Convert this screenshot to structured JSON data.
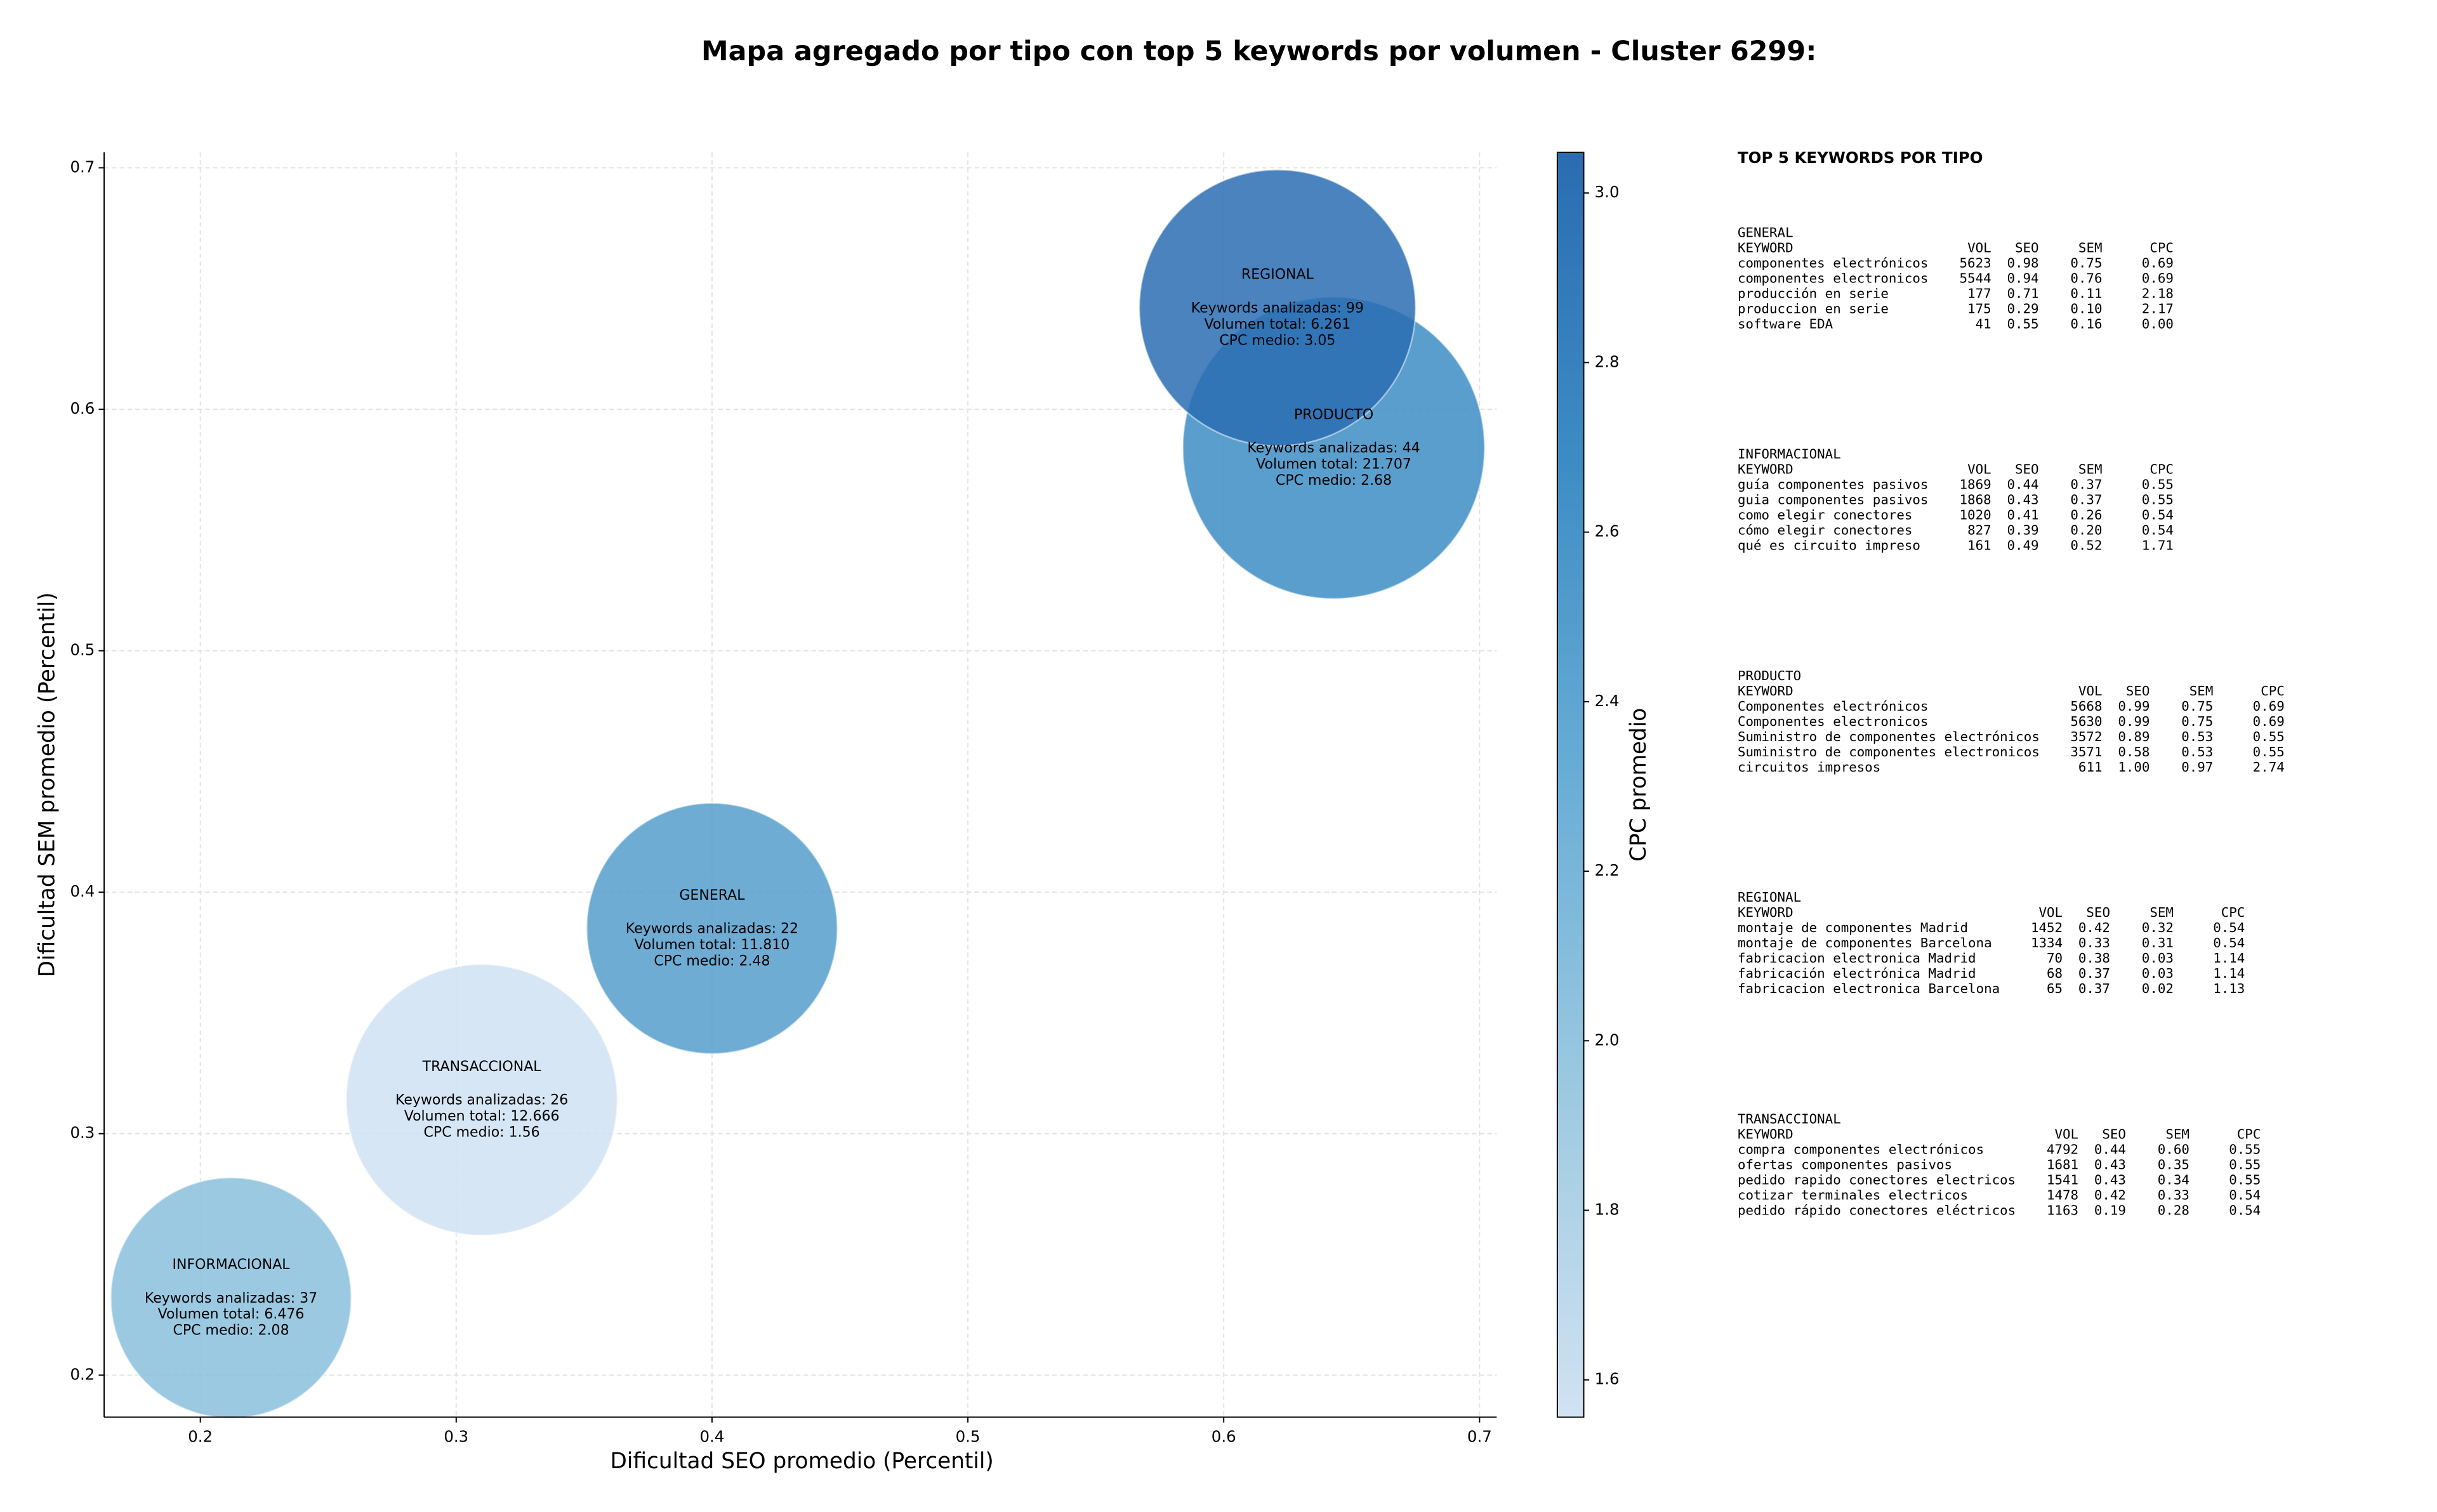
{
  "chart_data": {
    "type": "bubble",
    "title": "Mapa agregado por tipo con top 5 keywords por volumen - Cluster 6299:",
    "xlabel": "Dificultad SEO promedio (Percentil)",
    "ylabel": "Dificultad SEM promedio (Percentil)",
    "xlim": [
      0.1624,
      0.7067
    ],
    "ylim": [
      0.1826,
      0.7064
    ],
    "xticks": [
      0.2,
      0.3,
      0.4,
      0.5,
      0.6,
      0.7
    ],
    "yticks": [
      0.2,
      0.3,
      0.4,
      0.5,
      0.6,
      0.7
    ],
    "grid": true,
    "points": [
      {
        "name": "GENERAL",
        "x": 0.4,
        "y": 0.385,
        "size": 0.049,
        "cpc": 2.48,
        "annotation": [
          "Keywords analizadas: 22",
          "Volumen total: 11.810",
          "CPC medio: 2.48"
        ]
      },
      {
        "name": "INFORMACIONAL",
        "x": 0.212,
        "y": 0.232,
        "size": 0.047,
        "cpc": 2.08,
        "annotation": [
          "Keywords analizadas: 37",
          "Volumen total: 6.476",
          "CPC medio: 2.08"
        ]
      },
      {
        "name": "PRODUCTO",
        "x": 0.643,
        "y": 0.584,
        "size": 0.059,
        "cpc": 2.68,
        "annotation": [
          "Keywords analizadas: 44",
          "Volumen total: 21.707",
          "CPC medio: 2.68"
        ]
      },
      {
        "name": "REGIONAL",
        "x": 0.621,
        "y": 0.642,
        "size": 0.054,
        "cpc": 3.05,
        "annotation": [
          "Keywords analizadas: 99",
          "Volumen total: 6.261",
          "CPC medio: 3.05"
        ]
      },
      {
        "name": "TRANSACCIONAL",
        "x": 0.31,
        "y": 0.314,
        "size": 0.053,
        "cpc": 1.56,
        "annotation": [
          "Keywords analizadas: 26",
          "Volumen total: 12.666",
          "CPC medio: 1.56"
        ]
      }
    ],
    "colorbar": {
      "label": "CPC promedio",
      "lim": [
        1.556,
        3.048
      ],
      "ticks": [
        1.6,
        1.8,
        {
          "value": 2,
          "label": "2.0"
        },
        2.2,
        2.4,
        2.6,
        2.8,
        {
          "value": 3,
          "label": "3.0"
        }
      ],
      "colormap": [
        "#d1e2f3",
        "#9ecae1",
        "#6aaed6",
        "#3d8dc4",
        "#2a6db1"
      ]
    }
  },
  "side_panel": {
    "title": "TOP 5 KEYWORDS POR TIPO",
    "sections": [
      {
        "name": "GENERAL",
        "header": [
          "KEYWORD",
          "VOL",
          "SEO",
          "SEM",
          "CPC"
        ],
        "rows": [
          [
            "componentes electrónicos",
            "5623",
            "0.98",
            "0.75",
            "0.69"
          ],
          [
            "componentes electronicos",
            "5544",
            "0.94",
            "0.76",
            "0.69"
          ],
          [
            "producción en serie",
            "177",
            "0.71",
            "0.11",
            "2.18"
          ],
          [
            "produccion en serie",
            "175",
            "0.29",
            "0.10",
            "2.17"
          ],
          [
            "software EDA",
            "41",
            "0.55",
            "0.16",
            "0.00"
          ]
        ]
      },
      {
        "name": "INFORMACIONAL",
        "header": [
          "KEYWORD",
          "VOL",
          "SEO",
          "SEM",
          "CPC"
        ],
        "rows": [
          [
            "guía componentes pasivos",
            "1869",
            "0.44",
            "0.37",
            "0.55"
          ],
          [
            "guia componentes pasivos",
            "1868",
            "0.43",
            "0.37",
            "0.55"
          ],
          [
            "como elegir conectores",
            "1020",
            "0.41",
            "0.26",
            "0.54"
          ],
          [
            "cómo elegir conectores",
            "827",
            "0.39",
            "0.20",
            "0.54"
          ],
          [
            "qué es circuito impreso",
            "161",
            "0.49",
            "0.52",
            "1.71"
          ]
        ]
      },
      {
        "name": "PRODUCTO",
        "header": [
          "KEYWORD",
          "VOL",
          "SEO",
          "SEM",
          "CPC"
        ],
        "rows": [
          [
            "Componentes electrónicos",
            "5668",
            "0.99",
            "0.75",
            "0.69"
          ],
          [
            "Componentes electronicos",
            "5630",
            "0.99",
            "0.75",
            "0.69"
          ],
          [
            "Suministro de componentes electrónicos",
            "3572",
            "0.89",
            "0.53",
            "0.55"
          ],
          [
            "Suministro de componentes electronicos",
            "3571",
            "0.58",
            "0.53",
            "0.55"
          ],
          [
            "circuitos impresos",
            "611",
            "1.00",
            "0.97",
            "2.74"
          ]
        ]
      },
      {
        "name": "REGIONAL",
        "header": [
          "KEYWORD",
          "VOL",
          "SEO",
          "SEM",
          "CPC"
        ],
        "rows": [
          [
            "montaje de componentes Madrid",
            "1452",
            "0.42",
            "0.32",
            "0.54"
          ],
          [
            "montaje de componentes Barcelona",
            "1334",
            "0.33",
            "0.31",
            "0.54"
          ],
          [
            "fabricacion electronica Madrid",
            "70",
            "0.38",
            "0.03",
            "1.14"
          ],
          [
            "fabricación electrónica Madrid",
            "68",
            "0.37",
            "0.03",
            "1.14"
          ],
          [
            "fabricacion electronica Barcelona",
            "65",
            "0.37",
            "0.02",
            "1.13"
          ]
        ]
      },
      {
        "name": "TRANSACCIONAL",
        "header": [
          "KEYWORD",
          "VOL",
          "SEO",
          "SEM",
          "CPC"
        ],
        "rows": [
          [
            "compra componentes electrónicos",
            "4792",
            "0.44",
            "0.60",
            "0.55"
          ],
          [
            "ofertas componentes pasivos",
            "1681",
            "0.43",
            "0.35",
            "0.55"
          ],
          [
            "pedido rapido conectores electricos",
            "1541",
            "0.43",
            "0.34",
            "0.55"
          ],
          [
            "cotizar terminales electricos",
            "1478",
            "0.42",
            "0.33",
            "0.54"
          ],
          [
            "pedido rápido conectores eléctricos",
            "1163",
            "0.19",
            "0.28",
            "0.54"
          ]
        ]
      }
    ]
  }
}
